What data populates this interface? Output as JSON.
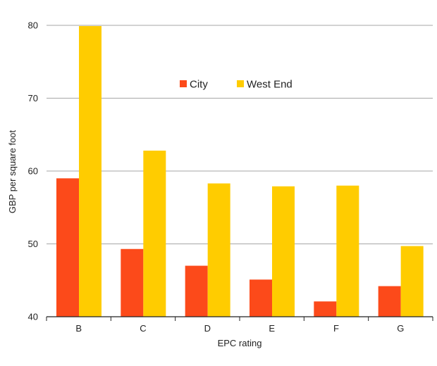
{
  "chart_data": {
    "type": "bar",
    "categories": [
      "B",
      "C",
      "D",
      "E",
      "F",
      "G"
    ],
    "series": [
      {
        "name": "City",
        "color": "#fc4a1a",
        "values": [
          59.0,
          49.3,
          47.0,
          45.1,
          42.1,
          44.2
        ]
      },
      {
        "name": "West End",
        "color": "#ffcc00",
        "values": [
          79.9,
          62.8,
          58.3,
          57.9,
          58.0,
          49.7
        ]
      }
    ],
    "title": "",
    "xlabel": "EPC rating",
    "ylabel": "GBP per square foot",
    "ylim": [
      40,
      80
    ],
    "yticks": [
      40,
      50,
      60,
      70,
      80
    ],
    "grid": true,
    "legend_position": "top-center"
  }
}
